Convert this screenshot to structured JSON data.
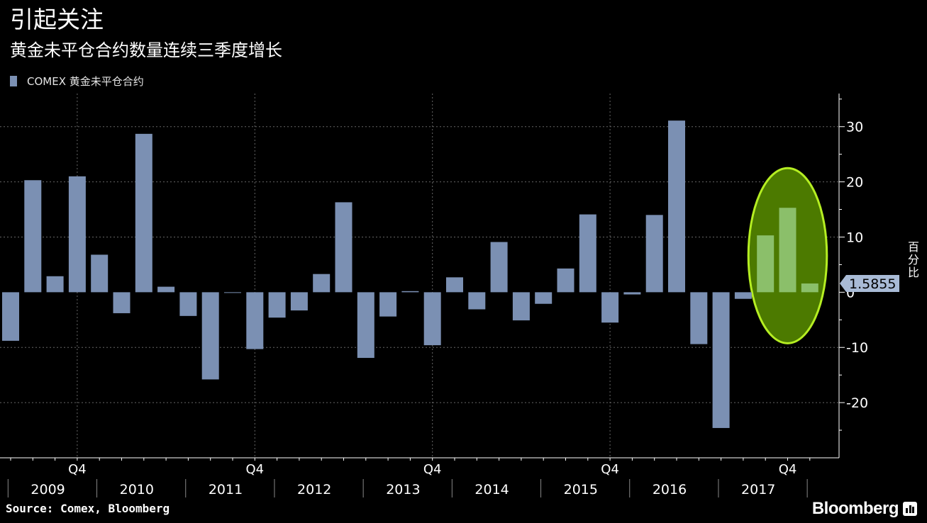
{
  "header": {
    "title": "引起关注",
    "subtitle": "黄金未平仓合约数量连续三季度增长"
  },
  "legend": {
    "label": "COMEX 黄金未平仓合约"
  },
  "footer": {
    "source": "Source: Comex, Bloomberg",
    "brand": "Bloomberg"
  },
  "colors": {
    "bar": "#7b90b3",
    "highlight_bar": "#8bbf6a",
    "highlight_fill": "#4c7a00",
    "highlight_stroke": "#b5ee22",
    "grid": "#666666",
    "axis": "#ffffff",
    "background": "#000000"
  },
  "chart_data": {
    "type": "bar",
    "title": "黄金未平仓合约数量连续三季度增长",
    "series_name": "COMEX 黄金未平仓合约",
    "ylabel": "百分比",
    "ylim": [
      -30,
      36
    ],
    "yticks": [
      -20,
      -10,
      0,
      10,
      20,
      30
    ],
    "year_labels": [
      "2009",
      "2010",
      "2011",
      "2012",
      "2013",
      "2014",
      "2015",
      "2016",
      "2017"
    ],
    "quarter_label": "Q4",
    "start": "2009 Q1",
    "values": [
      -8.8,
      20.3,
      2.9,
      21.0,
      6.8,
      -3.8,
      28.7,
      1.0,
      -4.3,
      -15.8,
      -0.1,
      -10.3,
      -4.6,
      -3.3,
      3.3,
      16.3,
      -11.9,
      -4.4,
      0.2,
      -9.6,
      2.7,
      -3.1,
      9.1,
      -5.1,
      -2.1,
      4.3,
      14.1,
      -5.5,
      -0.4,
      14.0,
      31.1,
      -9.4,
      -24.6,
      -1.2,
      10.3,
      15.3,
      1.5855
    ],
    "highlight": {
      "from_index": 34,
      "to_index": 36
    },
    "last_value_label": "1.5855"
  }
}
